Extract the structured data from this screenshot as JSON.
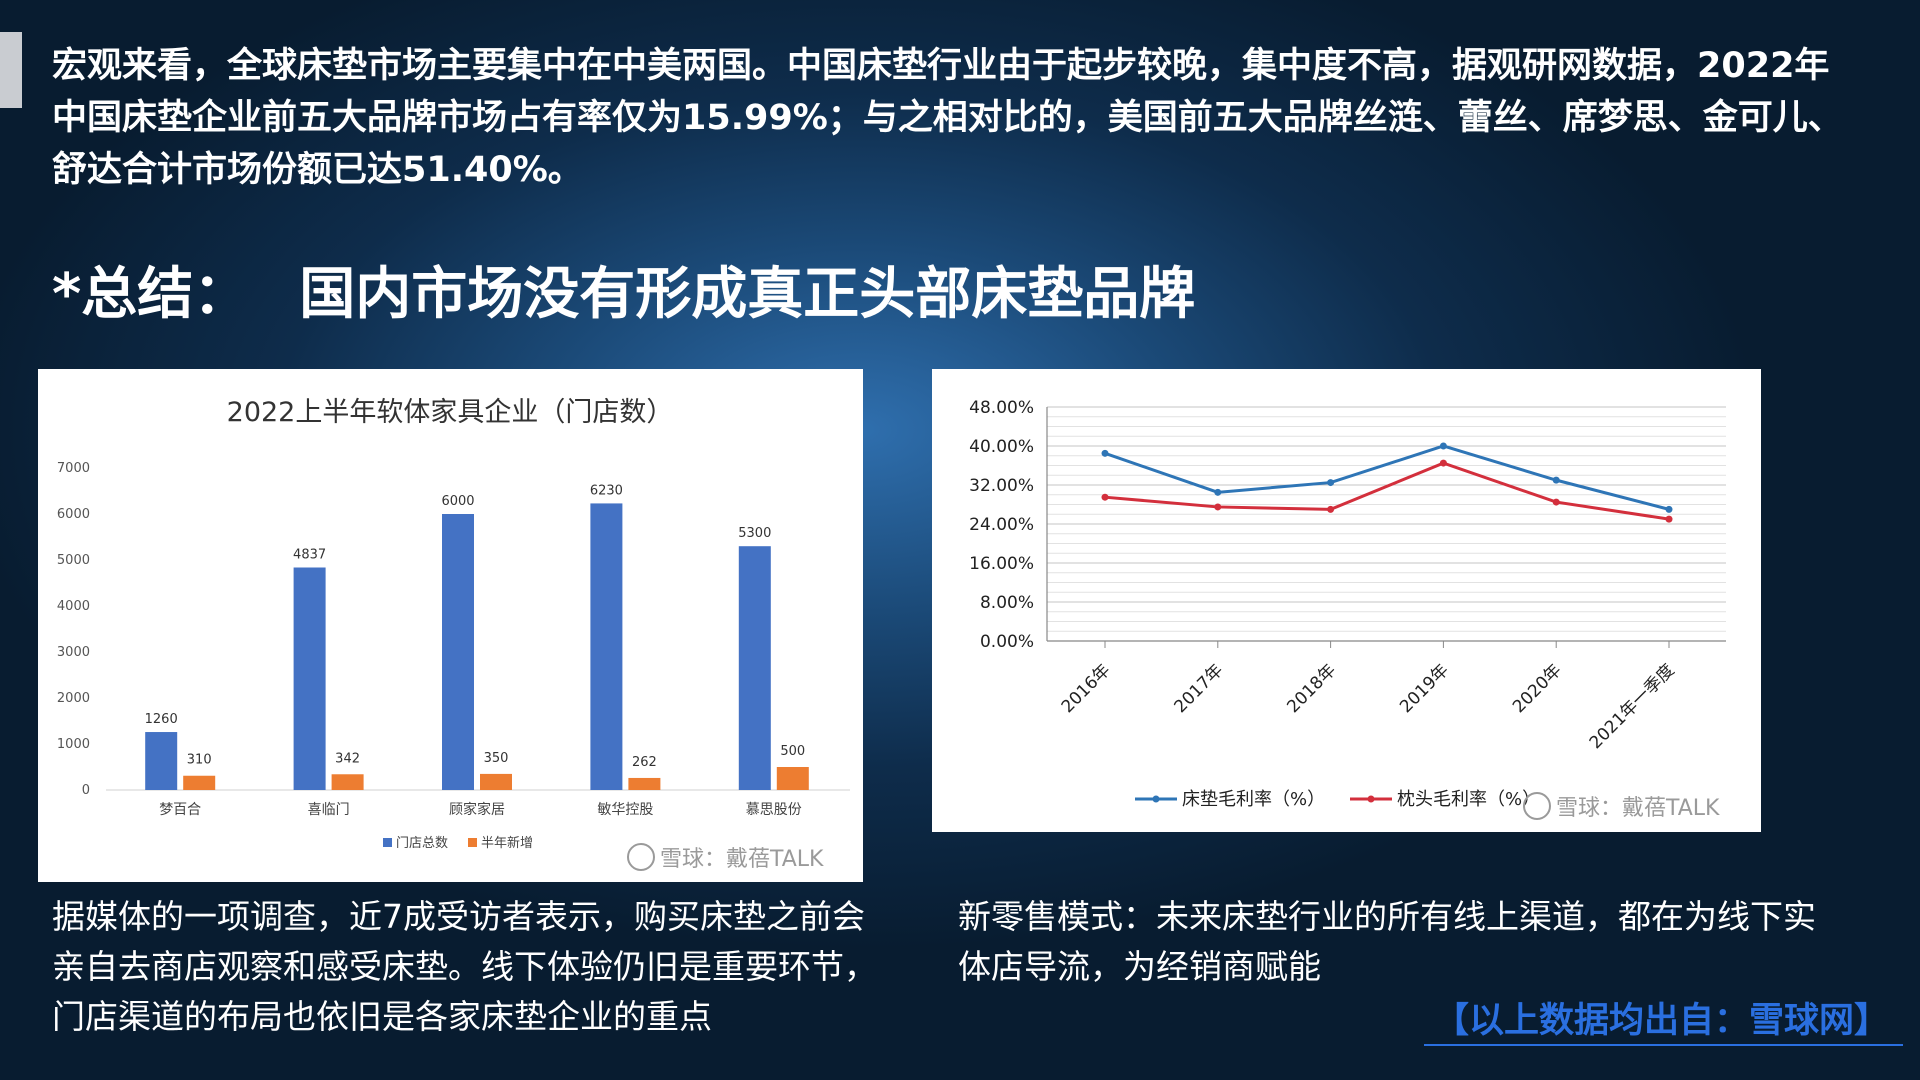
{
  "intro_text": "宏观来看，全球床垫市场主要集中在中美两国。中国床垫行业由于起步较晚，集中度不高，据观研网数据，2022年中国床垫企业前五大品牌市场占有率仅为15.99%；与之相对比的，美国前五大品牌丝涟、蕾丝、席梦思、金可儿、舒达合计市场份额已达51.40%。",
  "summary": {
    "prefix": "*总结：",
    "text": "国内市场没有形成真正头部床垫品牌"
  },
  "captions": {
    "left": "据媒体的一项调查，近7成受访者表示，购买床垫之前会亲自去商店观察和感受床垫。线下体验仍旧是重要环节，门店渠道的布局也依旧是各家床垫企业的重点",
    "right": "新零售模式：未来床垫行业的所有线上渠道，都在为线下实体店导流，为经销商赋能"
  },
  "source_note": "【以上数据均出自：雪球网】",
  "watermarks": {
    "bar": "雪球：戴蓓TALK",
    "line": "雪球：戴蓓TALK"
  },
  "colors": {
    "total_stores": "#4472c4",
    "new_half_year": "#ed7d31",
    "mattress_margin": "#2e75b6",
    "pillow_margin": "#d32f3c"
  },
  "chart_data": [
    {
      "type": "bar",
      "title": "2022上半年软体家具企业（门店数）",
      "categories": [
        "梦百合",
        "喜临门",
        "顾家家居",
        "敏华控股",
        "慕思股份"
      ],
      "series": [
        {
          "name": "门店总数",
          "values": [
            1260,
            4837,
            6000,
            6230,
            5300
          ]
        },
        {
          "name": "半年新增",
          "values": [
            310,
            342,
            350,
            262,
            500
          ]
        }
      ],
      "ylim": [
        0,
        7000
      ],
      "yticks": [
        "0",
        "1000",
        "2000",
        "3000",
        "4000",
        "5000",
        "6000",
        "7000"
      ],
      "legend": "bottom"
    },
    {
      "type": "line",
      "x": [
        "2016年",
        "2017年",
        "2018年",
        "2019年",
        "2020年",
        "2021年一季度"
      ],
      "series": [
        {
          "name": "床垫毛利率（%）",
          "values": [
            38.5,
            30.5,
            32.5,
            40.0,
            33.0,
            27.0
          ]
        },
        {
          "name": "枕头毛利率（%）",
          "values": [
            29.5,
            27.5,
            27.0,
            36.5,
            28.5,
            25.0
          ]
        }
      ],
      "ylim": [
        0,
        48
      ],
      "yticks": [
        "0.00%",
        "8.00%",
        "16.00%",
        "24.00%",
        "32.00%",
        "40.00%",
        "48.00%"
      ],
      "grid": true,
      "legend": "bottom"
    }
  ]
}
